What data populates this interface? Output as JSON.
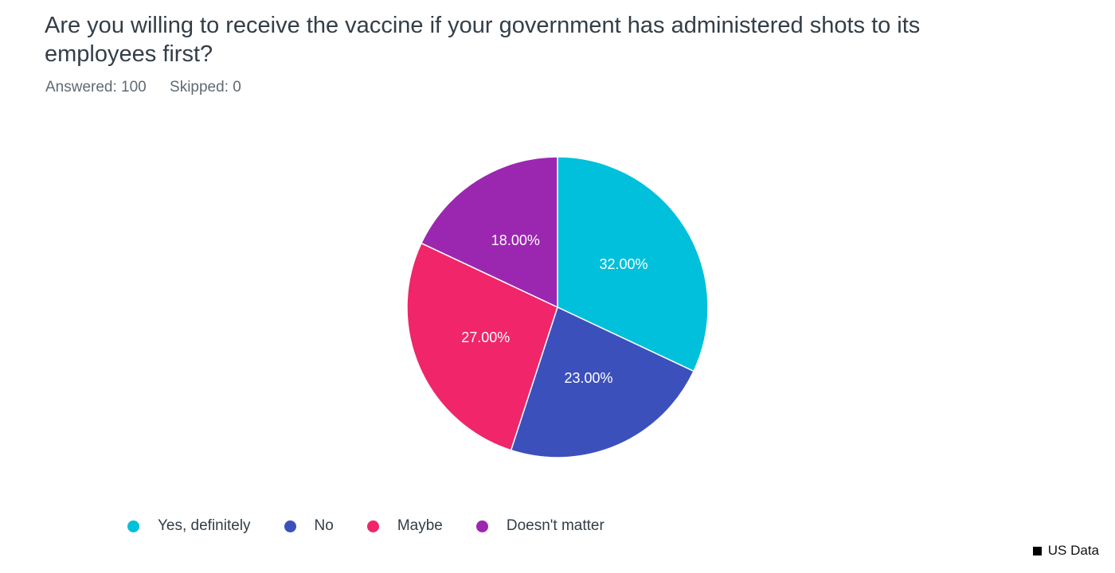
{
  "title": "Are you willing to receive the vaccine if your government has administered shots to its employees first?",
  "stats": {
    "answered": "Answered: 100",
    "skipped": "Skipped: 0"
  },
  "source_label": "US Data",
  "chart_data": {
    "type": "pie",
    "categories": [
      "Yes, definitely",
      "No",
      "Maybe",
      "Doesn't matter"
    ],
    "values": [
      32,
      23,
      27,
      18
    ],
    "labels": [
      "32.00%",
      "23.00%",
      "27.00%",
      "18.00%"
    ],
    "colors": [
      "#00c0db",
      "#3c50bc",
      "#f0256a",
      "#9b27b0"
    ],
    "start": "12 o'clock",
    "direction": "clockwise",
    "legend_position": "bottom"
  }
}
